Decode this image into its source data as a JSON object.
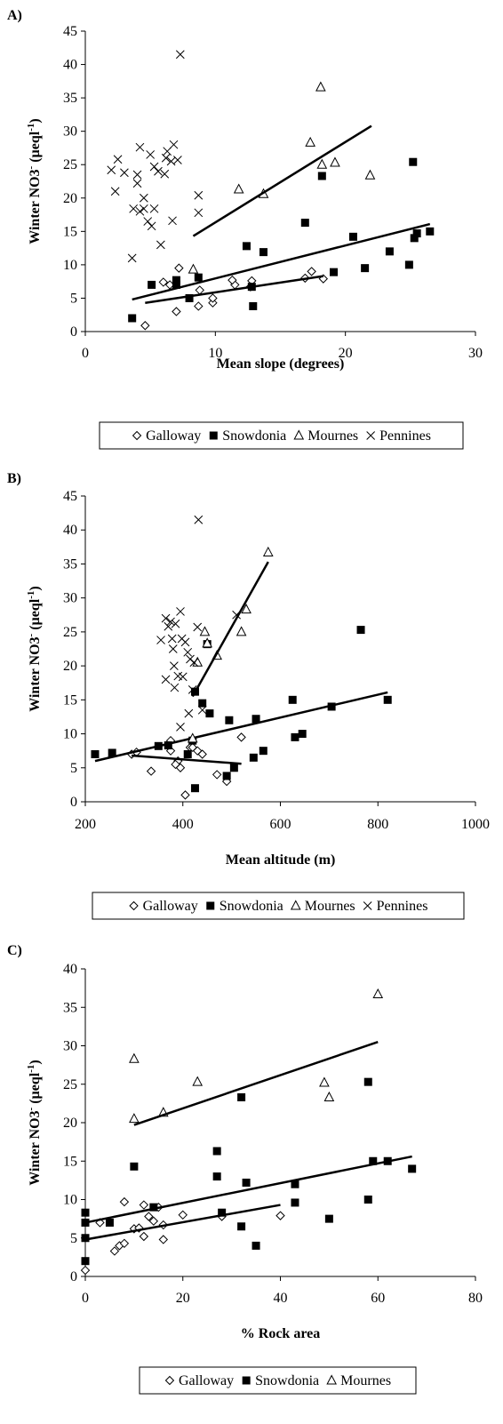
{
  "chart_data": [
    {
      "type": "scatter",
      "label": "A)",
      "xlabel": "Mean slope (degrees)",
      "ylabel": [
        "Winter NO",
        "3",
        "-",
        " (µeql",
        "-1",
        ")"
      ],
      "xlim": [
        0,
        30
      ],
      "xticks": [
        0,
        10,
        20,
        30
      ],
      "ylim": [
        0,
        45
      ],
      "yticks": [
        0,
        5,
        10,
        15,
        20,
        25,
        30,
        35,
        40,
        45
      ],
      "series": [
        {
          "name": "Galloway",
          "marker": "diamond",
          "color": "#000000",
          "x": [
            7.2,
            6,
            6.5,
            7,
            4.6,
            8.8,
            8.7,
            9.8,
            11.5,
            11.3,
            12.8,
            12.7,
            16.9,
            17.4,
            18.3,
            9.8
          ],
          "y": [
            9.5,
            7.4,
            7,
            3,
            0.9,
            6.2,
            3.8,
            4.3,
            7,
            7.7,
            7.6,
            6.7,
            8,
            9,
            7.9,
            5
          ],
          "trend": {
            "x": [
              4.6,
              18.3
            ],
            "y": [
              4.3,
              8.3
            ]
          }
        },
        {
          "name": "Snowdonia",
          "marker": "square",
          "color": "#000000",
          "x": [
            3.6,
            5.1,
            7,
            7,
            8,
            8.7,
            12.4,
            12.9,
            12.8,
            13.7,
            16.9,
            18.2,
            19.1,
            20.6,
            21.5,
            23.4,
            24.9,
            25.2,
            25.3,
            25.5,
            26.5
          ],
          "y": [
            2,
            7,
            7.7,
            7,
            5,
            8.1,
            12.8,
            3.8,
            6.7,
            11.9,
            16.3,
            23.3,
            8.9,
            14.2,
            9.5,
            12,
            10,
            25.4,
            14,
            14.7,
            15
          ],
          "trend": {
            "x": [
              3.6,
              26.5
            ],
            "y": [
              4.8,
              16.1
            ]
          }
        },
        {
          "name": "Mournes",
          "marker": "triangle",
          "color": "#000000",
          "x": [
            8.3,
            11.8,
            13.7,
            17.3,
            18.1,
            18.2,
            19.2,
            21.9
          ],
          "y": [
            9.3,
            21.3,
            20.6,
            28.3,
            36.6,
            25,
            25.3,
            23.4
          ],
          "trend": {
            "x": [
              8.3,
              22
            ],
            "y": [
              14.3,
              30.8
            ]
          }
        },
        {
          "name": "Pennines",
          "marker": "cross",
          "color": "#000000",
          "x": [
            2,
            2.3,
            2.5,
            3,
            3.7,
            3.6,
            4,
            4.2,
            4,
            4.2,
            4.5,
            4.8,
            5.1,
            5.3,
            5,
            5.3,
            5.6,
            5.8,
            6.1,
            6.2,
            6.3,
            6.6,
            6.7,
            6.8,
            7.1,
            7.3,
            8.7,
            8.7,
            4.5
          ],
          "y": [
            24.2,
            21,
            25.8,
            23.8,
            18.4,
            11,
            23.5,
            27.6,
            22.2,
            18,
            18.4,
            16.5,
            15.8,
            18.4,
            26.5,
            24.7,
            24,
            13,
            23.6,
            26,
            27,
            25.5,
            16.6,
            28,
            25.7,
            41.5,
            20.4,
            17.8,
            20
          ]
        }
      ]
    },
    {
      "type": "scatter",
      "label": "B)",
      "xlabel": "Mean altitude (m)",
      "ylabel": [
        "Winter NO",
        "3",
        "-",
        " (µeql",
        "-1",
        ")"
      ],
      "xlim": [
        200,
        1000
      ],
      "xticks": [
        200,
        400,
        600,
        800,
        1000
      ],
      "ylim": [
        0,
        45
      ],
      "yticks": [
        0,
        5,
        10,
        15,
        20,
        25,
        30,
        35,
        40,
        45
      ],
      "series": [
        {
          "name": "Galloway",
          "marker": "diamond",
          "color": "#000000",
          "x": [
            295,
            305,
            335,
            375,
            375,
            390,
            395,
            405,
            415,
            420,
            430,
            440,
            470,
            490,
            520,
            385
          ],
          "y": [
            7,
            7.3,
            4.5,
            9,
            7.5,
            6,
            5,
            1,
            8,
            8,
            7.5,
            7,
            4,
            3,
            9.5,
            5.5
          ],
          "trend": {
            "x": [
              295,
              520
            ],
            "y": [
              6.8,
              5.6
            ]
          }
        },
        {
          "name": "Snowdonia",
          "marker": "square",
          "color": "#000000",
          "x": [
            220,
            255,
            350,
            370,
            410,
            420,
            425,
            425,
            440,
            450,
            455,
            490,
            495,
            505,
            545,
            550,
            565,
            625,
            630,
            645,
            705,
            765,
            820
          ],
          "y": [
            7,
            7.2,
            8.2,
            8.3,
            7,
            9,
            2,
            16.2,
            14.5,
            23.2,
            13,
            3.8,
            12,
            5,
            6.5,
            12.2,
            7.5,
            15,
            9.5,
            10,
            14,
            25.3,
            15
          ],
          "trend": {
            "x": [
              220,
              820
            ],
            "y": [
              6,
              16.1
            ]
          }
        },
        {
          "name": "Mournes",
          "marker": "triangle",
          "color": "#000000",
          "x": [
            420,
            430,
            445,
            450,
            470,
            520,
            530,
            575
          ],
          "y": [
            9.3,
            20.5,
            25,
            23.3,
            21.5,
            25,
            28.3,
            36.7
          ],
          "trend": {
            "x": [
              420,
              575
            ],
            "y": [
              15.5,
              35.3
            ]
          }
        },
        {
          "name": "Pennines",
          "marker": "cross",
          "color": "#000000",
          "x": [
            355,
            365,
            365,
            370,
            375,
            378,
            382,
            383,
            385,
            390,
            395,
            398,
            400,
            405,
            410,
            412,
            415,
            420,
            423,
            430,
            432,
            440,
            395,
            510,
            380
          ],
          "y": [
            23.8,
            27,
            18,
            25.8,
            26.5,
            24,
            20,
            16.8,
            26.2,
            18.5,
            28,
            24,
            18.4,
            23.5,
            22,
            13,
            21,
            16.5,
            20.5,
            25.7,
            41.5,
            13.5,
            11,
            27.5,
            22.5
          ]
        }
      ]
    },
    {
      "type": "scatter",
      "label": "C)",
      "xlabel": "% Rock area",
      "ylabel": [
        "Winter NO",
        "3",
        "-",
        " (µeql",
        "-1",
        ")"
      ],
      "xlim": [
        0,
        80
      ],
      "xticks": [
        0,
        20,
        40,
        60,
        80
      ],
      "ylim": [
        0,
        40
      ],
      "yticks": [
        0,
        5,
        10,
        15,
        20,
        25,
        30,
        35,
        40
      ],
      "series": [
        {
          "name": "Galloway",
          "marker": "diamond",
          "color": "#000000",
          "x": [
            0,
            3,
            6,
            7,
            8,
            8,
            10,
            11,
            12,
            12,
            13,
            14,
            15,
            16,
            16,
            20,
            28,
            40
          ],
          "y": [
            0.8,
            7,
            3.3,
            4,
            4.3,
            9.7,
            6.2,
            6.3,
            5.2,
            9.3,
            7.8,
            7.2,
            9,
            4.8,
            6.7,
            8,
            7.8,
            7.9
          ],
          "trend": {
            "x": [
              0,
              40
            ],
            "y": [
              4.8,
              9.3
            ]
          }
        },
        {
          "name": "Snowdonia",
          "marker": "square",
          "color": "#000000",
          "x": [
            0,
            0,
            0,
            0,
            5,
            10,
            14,
            27,
            27,
            28,
            32,
            32,
            33,
            35,
            43,
            43,
            50,
            58,
            58,
            59,
            62,
            67
          ],
          "y": [
            2,
            5,
            7,
            8.3,
            7,
            14.3,
            9,
            16.3,
            13,
            8.3,
            23.3,
            6.5,
            12.2,
            4,
            12,
            9.6,
            7.5,
            25.3,
            10,
            15,
            15,
            14
          ],
          "trend": {
            "x": [
              0,
              67
            ],
            "y": [
              7,
              15.6
            ]
          }
        },
        {
          "name": "Mournes",
          "marker": "triangle",
          "color": "#000000",
          "x": [
            10,
            10,
            16,
            23,
            49,
            50,
            60
          ],
          "y": [
            28.3,
            20.5,
            21.3,
            25.3,
            25.2,
            23.3,
            36.7
          ],
          "trend": {
            "x": [
              10,
              60
            ],
            "y": [
              19.7,
              30.5
            ]
          }
        }
      ]
    }
  ]
}
